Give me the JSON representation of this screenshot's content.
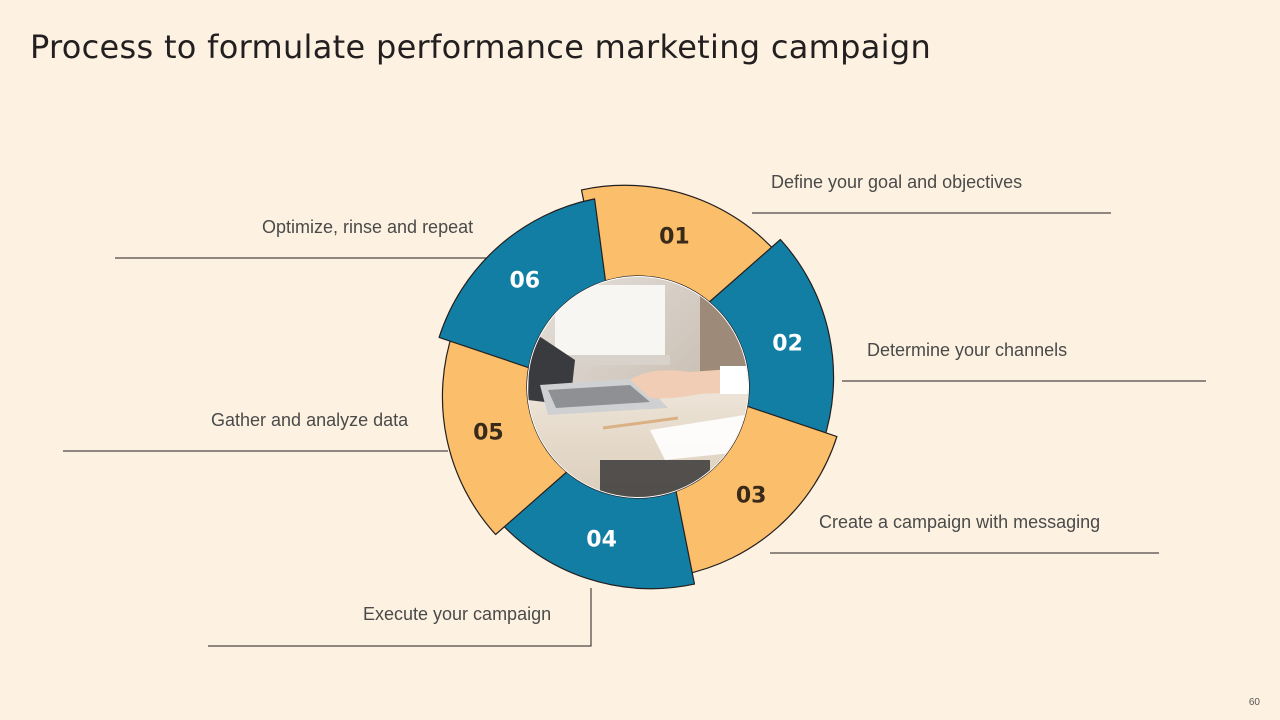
{
  "title": "Process to formulate performance marketing campaign",
  "page_number": "60",
  "colors": {
    "background": "#fdf2e1",
    "orange": "#fbbf6b",
    "blue": "#127ea3",
    "dark_text": "#3a2a1a",
    "white_text": "#ffffff"
  },
  "center_image": "laptop-typing-photo",
  "steps": [
    {
      "number": "01",
      "label": "Define your goal and objectives",
      "color": "orange"
    },
    {
      "number": "02",
      "label": "Determine your channels",
      "color": "blue"
    },
    {
      "number": "03",
      "label": "Create a campaign with messaging",
      "color": "orange"
    },
    {
      "number": "04",
      "label": "Execute your campaign",
      "color": "blue"
    },
    {
      "number": "05",
      "label": "Gather and analyze data",
      "color": "orange"
    },
    {
      "number": "06",
      "label": "Optimize, rinse and repeat",
      "color": "blue"
    }
  ]
}
